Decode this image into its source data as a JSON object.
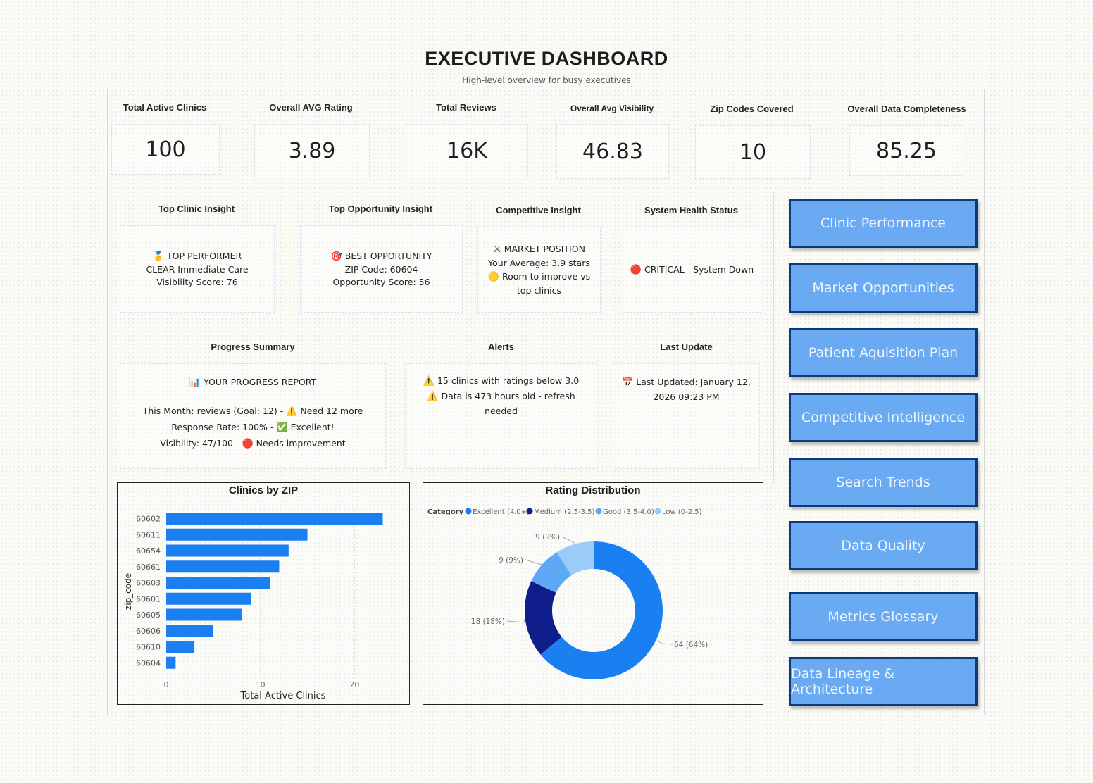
{
  "header": {
    "title": "EXECUTIVE DASHBOARD",
    "subtitle": "High-level overview for busy executives"
  },
  "kpis": [
    {
      "label": "Total Active Clinics",
      "value": "100"
    },
    {
      "label": "Overall AVG Rating",
      "value": "3.89"
    },
    {
      "label": "Total Reviews",
      "value": "16K"
    },
    {
      "label": "Overall Avg Visibility",
      "value": "46.83"
    },
    {
      "label": "Zip Codes Covered",
      "value": "10"
    },
    {
      "label": "Overall Data Completeness",
      "value": "85.25"
    }
  ],
  "insights": {
    "top_clinic": {
      "label": "Top Clinic Insight",
      "icon": "medal-icon",
      "icon_glyph": "🥇",
      "heading": "TOP PERFORMER",
      "line1": "CLEAR Immediate Care",
      "line2": "Visibility Score: 76"
    },
    "top_opportunity": {
      "label": "Top Opportunity Insight",
      "icon": "target-icon",
      "icon_glyph": "🎯",
      "heading": "BEST OPPORTUNITY",
      "line1": "ZIP Code: 60604",
      "line2": "Opportunity Score: 56"
    },
    "competitive": {
      "label": "Competitive Insight",
      "icon": "crossed-swords-icon",
      "icon_glyph": "⚔",
      "heading": "MARKET POSITION",
      "line1": "Your Average: 3.9 stars",
      "status_icon": "yellow-circle-icon",
      "status_glyph": "🟡",
      "line2": "Room to improve vs top clinics"
    },
    "system_health": {
      "label": "System Health Status",
      "icon": "red-circle-icon",
      "icon_glyph": "🔴",
      "text": "CRITICAL - System Down"
    }
  },
  "progress": {
    "label": "Progress Summary",
    "icon_glyph": "📊",
    "heading": "YOUR PROGRESS REPORT",
    "rows": [
      {
        "text": "This Month: reviews (Goal: 12) -",
        "icon": "warning-icon",
        "glyph": "⚠️",
        "status": "Need 12 more"
      },
      {
        "text": "Response Rate: 100% -",
        "icon": "check-icon",
        "glyph": "✅",
        "status": "Excellent!"
      },
      {
        "text": "Visibility: 47/100 -",
        "icon": "red-circle-icon",
        "glyph": "🔴",
        "status": "Needs improvement"
      }
    ]
  },
  "alerts": {
    "label": "Alerts",
    "glyph": "⚠️",
    "items": [
      "15 clinics with ratings below 3.0",
      "Data is 473 hours old - refresh needed"
    ]
  },
  "last_update": {
    "label": "Last Update",
    "glyph": "📅",
    "text": "Last Updated: January 12, 2026 09:23 PM"
  },
  "nav_buttons": [
    "Clinic Performance",
    "Market Opportunities",
    "Patient Aquisition Plan",
    "Competitive Intelligence",
    "Search Trends",
    "Data Quality",
    "Metrics Glossary",
    "Data Lineage & Architecture"
  ],
  "colors": {
    "bar": "#1a7ff0",
    "nav_fill": "#6aaaf2",
    "nav_border": "#0e3a78"
  },
  "chart_data": [
    {
      "type": "bar",
      "orientation": "horizontal",
      "title": "Clinics by ZIP",
      "categories": [
        "60602",
        "60611",
        "60654",
        "60661",
        "60603",
        "60601",
        "60605",
        "60606",
        "60610",
        "60604"
      ],
      "values": [
        23,
        15,
        13,
        12,
        11,
        9,
        8,
        5,
        3,
        1
      ],
      "xlabel": "Total Active Clinics",
      "ylabel": "zip_code",
      "xticks": [
        0,
        10,
        20
      ],
      "xlim": [
        0,
        24
      ],
      "grid": true,
      "color": "#1a7ff0"
    },
    {
      "type": "pie",
      "variant": "donut",
      "title": "Rating Distribution",
      "legend_title": "Category",
      "legend_position": "top-left",
      "categories": [
        "Excellent (4.0+)",
        "Medium (2.5-3.5)",
        "Good (3.5-4.0)",
        "Low (0-2.5)"
      ],
      "values": [
        64,
        18,
        9,
        9
      ],
      "labels": [
        "64 (64%)",
        "18 (18%)",
        "9 (9%)",
        "9 (9%)"
      ],
      "colors": [
        "#1a7ff0",
        "#0f1d8a",
        "#5ea9f5",
        "#9bcbf8"
      ]
    }
  ]
}
